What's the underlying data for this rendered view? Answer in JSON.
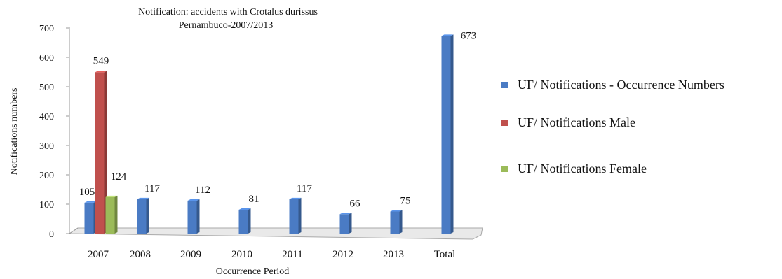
{
  "chart_data": {
    "type": "bar",
    "title": "Notification: accidents with  Crotalus durissus",
    "subtitle": "Pernambuco-2007/2013",
    "xlabel": "Occurrence Period",
    "ylabel": "Notifications numbers",
    "categories": [
      "2007",
      "2008",
      "2009",
      "2010",
      "2011",
      "2012",
      "2013",
      "Total"
    ],
    "ylim": [
      0,
      700
    ],
    "yticks": [
      "0",
      "100",
      "200",
      "300",
      "400",
      "500",
      "600",
      "700"
    ],
    "grid": false,
    "legend_position": "right",
    "series": [
      {
        "name": "UF/ Notifications - Occurrence Numbers",
        "color": "#4a7bc4",
        "values": [
          105,
          117,
          112,
          81,
          117,
          66,
          75,
          673
        ]
      },
      {
        "name": "UF/ Notifications Male",
        "color": "#c0504d",
        "values": [
          549,
          null,
          null,
          null,
          null,
          null,
          null,
          null
        ]
      },
      {
        "name": "UF/ Notifications  Female",
        "color": "#9bbb59",
        "values": [
          124,
          null,
          null,
          null,
          null,
          null,
          null,
          null
        ]
      }
    ]
  }
}
